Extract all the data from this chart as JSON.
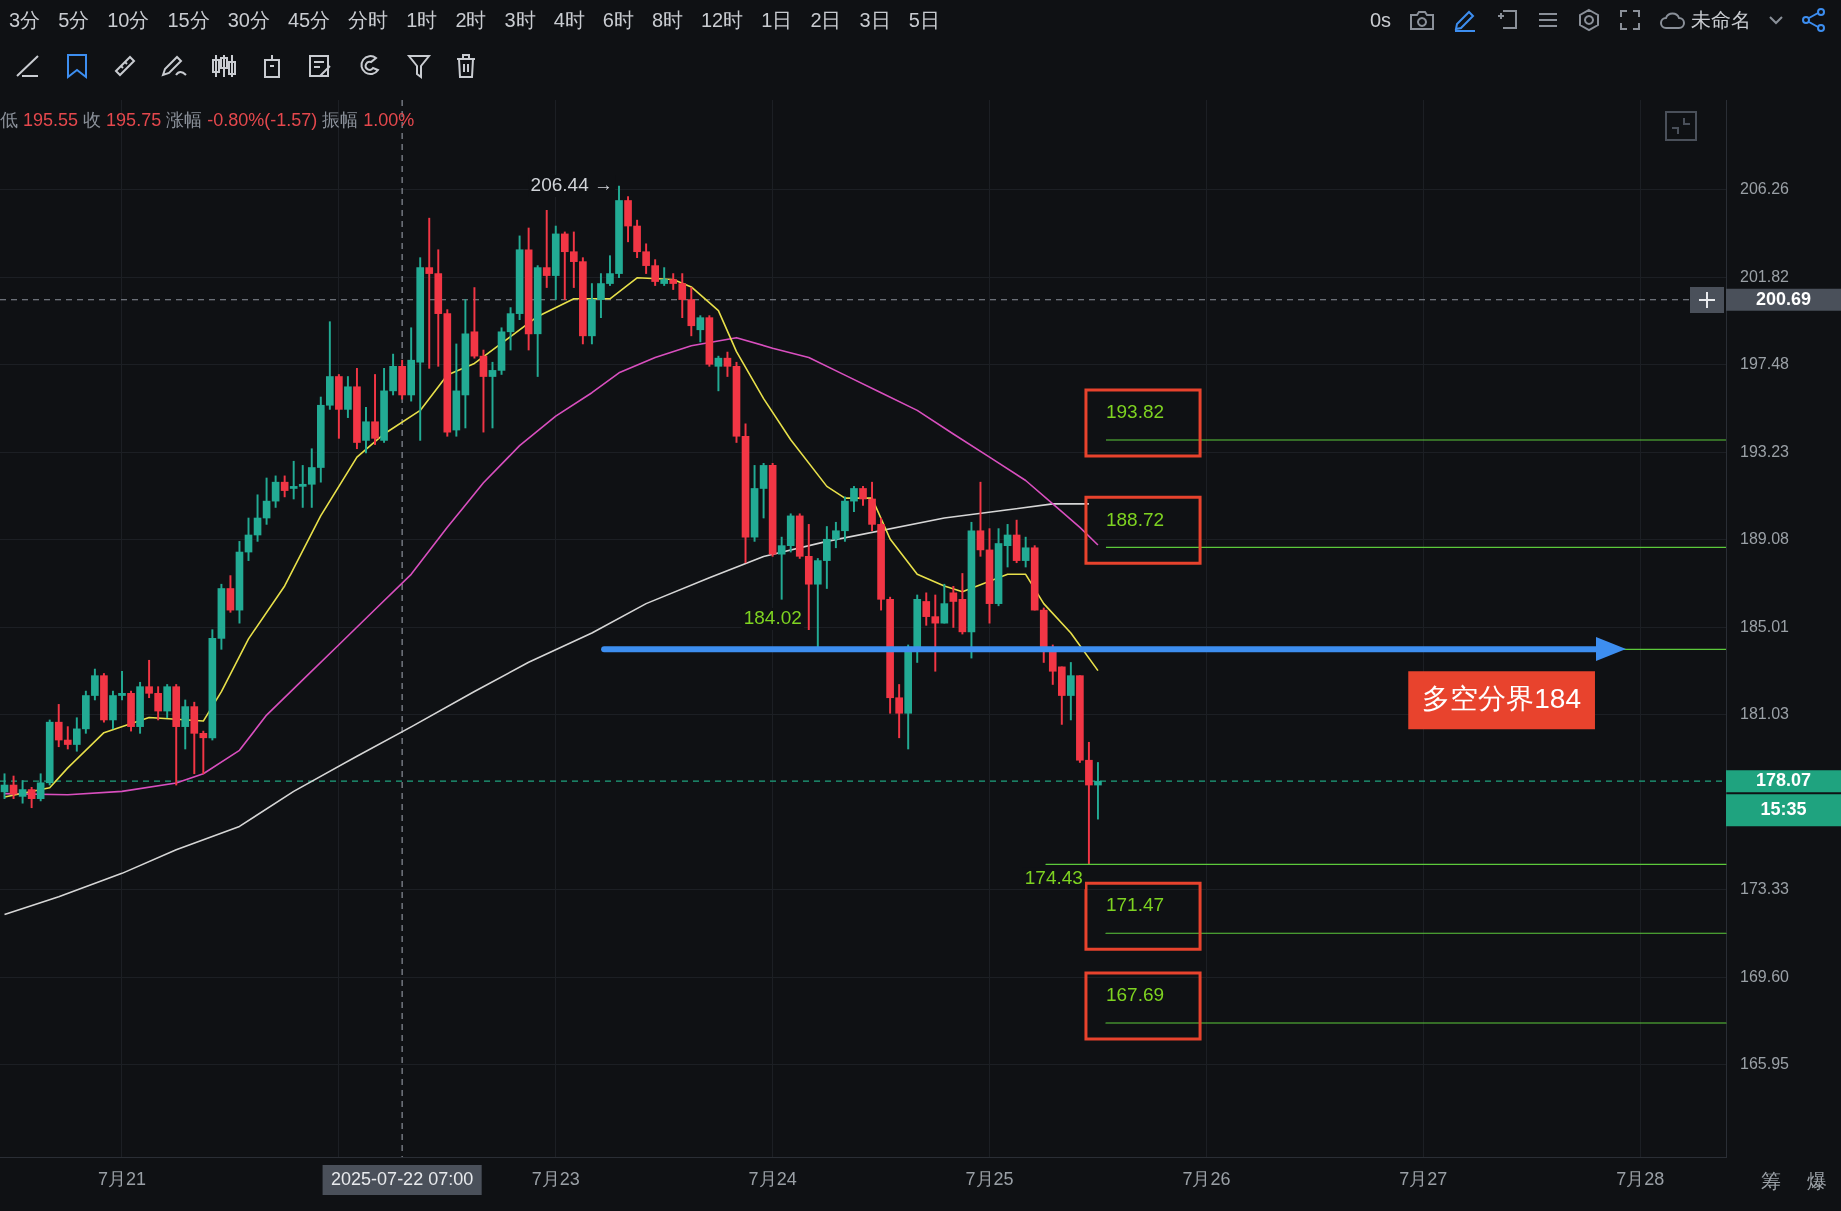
{
  "chart_data": {
    "type": "candlestick",
    "subtitle": "低 195.55 收 195.75 涨幅 -0.80%(-1.57) 振幅 1.00%",
    "x": [
      "2025-07-20T11:00",
      "2025-07-20T12:00",
      "2025-07-20T13:00",
      "2025-07-20T14:00",
      "2025-07-20T15:00",
      "2025-07-20T16:00",
      "2025-07-20T17:00",
      "2025-07-20T18:00",
      "2025-07-20T19:00",
      "2025-07-20T20:00",
      "2025-07-20T21:00",
      "2025-07-20T22:00",
      "2025-07-20T23:00",
      "2025-07-21T00:00",
      "2025-07-21T01:00",
      "2025-07-21T02:00",
      "2025-07-21T03:00",
      "2025-07-21T04:00",
      "2025-07-21T05:00",
      "2025-07-21T06:00",
      "2025-07-21T07:00",
      "2025-07-21T08:00",
      "2025-07-21T09:00",
      "2025-07-21T10:00",
      "2025-07-21T11:00",
      "2025-07-21T12:00",
      "2025-07-21T13:00",
      "2025-07-21T14:00",
      "2025-07-21T15:00",
      "2025-07-21T16:00",
      "2025-07-21T17:00",
      "2025-07-21T18:00",
      "2025-07-21T19:00",
      "2025-07-21T20:00",
      "2025-07-21T21:00",
      "2025-07-21T22:00",
      "2025-07-21T23:00",
      "2025-07-22T00:00",
      "2025-07-22T01:00",
      "2025-07-22T02:00",
      "2025-07-22T03:00",
      "2025-07-22T04:00",
      "2025-07-22T05:00",
      "2025-07-22T06:00",
      "2025-07-22T07:00",
      "2025-07-22T08:00",
      "2025-07-22T09:00",
      "2025-07-22T10:00",
      "2025-07-22T11:00",
      "2025-07-22T12:00",
      "2025-07-22T13:00",
      "2025-07-22T14:00",
      "2025-07-22T15:00",
      "2025-07-22T16:00",
      "2025-07-22T17:00",
      "2025-07-22T18:00",
      "2025-07-22T19:00",
      "2025-07-22T20:00",
      "2025-07-22T21:00",
      "2025-07-22T22:00",
      "2025-07-22T23:00",
      "2025-07-23T00:00",
      "2025-07-23T01:00",
      "2025-07-23T02:00",
      "2025-07-23T03:00",
      "2025-07-23T04:00",
      "2025-07-23T05:00",
      "2025-07-23T06:00",
      "2025-07-23T07:00",
      "2025-07-23T08:00",
      "2025-07-23T09:00",
      "2025-07-23T10:00",
      "2025-07-23T11:00",
      "2025-07-23T12:00",
      "2025-07-23T13:00",
      "2025-07-23T14:00",
      "2025-07-23T15:00",
      "2025-07-23T16:00",
      "2025-07-23T17:00",
      "2025-07-23T18:00",
      "2025-07-23T19:00",
      "2025-07-23T20:00",
      "2025-07-23T21:00",
      "2025-07-23T22:00",
      "2025-07-23T23:00",
      "2025-07-24T00:00",
      "2025-07-24T01:00",
      "2025-07-24T02:00",
      "2025-07-24T03:00",
      "2025-07-24T04:00",
      "2025-07-24T05:00",
      "2025-07-24T06:00",
      "2025-07-24T07:00",
      "2025-07-24T08:00",
      "2025-07-24T09:00",
      "2025-07-24T10:00",
      "2025-07-24T11:00",
      "2025-07-24T12:00",
      "2025-07-24T13:00",
      "2025-07-24T14:00",
      "2025-07-24T15:00",
      "2025-07-24T16:00",
      "2025-07-24T17:00",
      "2025-07-24T18:00",
      "2025-07-24T19:00",
      "2025-07-24T20:00",
      "2025-07-24T21:00",
      "2025-07-24T22:00",
      "2025-07-24T23:00",
      "2025-07-25T00:00",
      "2025-07-25T01:00",
      "2025-07-25T02:00",
      "2025-07-25T03:00",
      "2025-07-25T04:00",
      "2025-07-25T05:00",
      "2025-07-25T06:00",
      "2025-07-25T07:00",
      "2025-07-25T08:00",
      "2025-07-25T09:00",
      "2025-07-25T10:00",
      "2025-07-25T11:00",
      "2025-07-25T12:00"
    ],
    "ohlc": [
      [
        177.6,
        178.4,
        177.3,
        177.9
      ],
      [
        177.9,
        178.3,
        177.3,
        177.5
      ],
      [
        177.4,
        178.1,
        177.1,
        177.7
      ],
      [
        177.7,
        177.8,
        176.9,
        177.3
      ],
      [
        177.3,
        178.4,
        177.2,
        178.0
      ],
      [
        178.0,
        180.8,
        177.9,
        180.7
      ],
      [
        180.7,
        181.5,
        179.6,
        179.9
      ],
      [
        179.9,
        180.5,
        179.5,
        179.7
      ],
      [
        179.7,
        180.9,
        179.4,
        180.4
      ],
      [
        180.4,
        182.1,
        180.2,
        181.9
      ],
      [
        181.9,
        183.1,
        181.7,
        182.8
      ],
      [
        182.8,
        182.9,
        180.7,
        180.8
      ],
      [
        180.8,
        182.1,
        180.4,
        181.9
      ],
      [
        181.9,
        183.0,
        181.7,
        182.0
      ],
      [
        182.0,
        182.1,
        180.3,
        180.5
      ],
      [
        180.5,
        182.5,
        180.2,
        182.3
      ],
      [
        182.3,
        183.5,
        181.8,
        182.0
      ],
      [
        182.0,
        182.3,
        180.8,
        181.2
      ],
      [
        181.2,
        182.4,
        180.9,
        182.3
      ],
      [
        182.3,
        182.4,
        177.9,
        180.5
      ],
      [
        180.5,
        181.7,
        179.5,
        181.4
      ],
      [
        181.4,
        181.6,
        178.4,
        180.2
      ],
      [
        180.2,
        180.3,
        178.4,
        180.0
      ],
      [
        180.0,
        184.9,
        179.9,
        184.5
      ],
      [
        184.5,
        187.0,
        184.0,
        186.8
      ],
      [
        186.8,
        187.4,
        185.7,
        185.8
      ],
      [
        185.8,
        189.0,
        185.2,
        188.5
      ],
      [
        188.5,
        190.1,
        188.1,
        189.3
      ],
      [
        189.3,
        191.2,
        189.0,
        190.1
      ],
      [
        190.1,
        192.0,
        189.8,
        190.9
      ],
      [
        190.9,
        192.1,
        190.6,
        191.8
      ],
      [
        191.8,
        192.1,
        191.1,
        191.4
      ],
      [
        191.5,
        192.8,
        191.0,
        191.6
      ],
      [
        191.6,
        192.6,
        190.6,
        191.7
      ],
      [
        191.7,
        193.4,
        190.6,
        192.5
      ],
      [
        192.5,
        195.9,
        191.8,
        195.5
      ],
      [
        195.5,
        199.6,
        195.3,
        196.9
      ],
      [
        196.9,
        197.0,
        193.9,
        195.3
      ],
      [
        195.3,
        196.9,
        194.9,
        196.4
      ],
      [
        196.4,
        197.3,
        193.4,
        193.7
      ],
      [
        193.8,
        195.4,
        193.2,
        194.7
      ],
      [
        194.7,
        197.0,
        193.6,
        193.9
      ],
      [
        193.8,
        197.3,
        193.7,
        196.2
      ],
      [
        196.2,
        198.0,
        196.0,
        197.4
      ],
      [
        197.4,
        197.7,
        195.8,
        196.0
      ],
      [
        196.0,
        199.3,
        195.7,
        197.7
      ],
      [
        197.6,
        202.8,
        193.8,
        202.3
      ],
      [
        202.3,
        204.8,
        197.3,
        202.0
      ],
      [
        202.0,
        203.2,
        197.4,
        200.0
      ],
      [
        200.0,
        200.2,
        194.0,
        194.2
      ],
      [
        194.3,
        198.5,
        194.0,
        196.2
      ],
      [
        196.0,
        200.7,
        194.4,
        199.0
      ],
      [
        199.1,
        201.3,
        197.8,
        197.9
      ],
      [
        197.9,
        198.2,
        194.2,
        196.9
      ],
      [
        196.9,
        197.6,
        194.4,
        197.2
      ],
      [
        197.2,
        199.3,
        197.0,
        199.1
      ],
      [
        199.1,
        200.3,
        198.2,
        200.0
      ],
      [
        200.0,
        203.9,
        199.7,
        203.2
      ],
      [
        203.2,
        204.3,
        198.2,
        199.0
      ],
      [
        199.0,
        202.4,
        196.9,
        202.3
      ],
      [
        202.3,
        205.2,
        201.3,
        201.9
      ],
      [
        201.9,
        204.4,
        200.7,
        204.0
      ],
      [
        204.0,
        204.1,
        200.7,
        203.1
      ],
      [
        203.1,
        204.1,
        201.3,
        202.6
      ],
      [
        202.6,
        202.8,
        198.5,
        198.9
      ],
      [
        198.9,
        201.5,
        198.5,
        200.7
      ],
      [
        200.7,
        202.0,
        199.8,
        201.5
      ],
      [
        201.5,
        202.9,
        201.4,
        202.0
      ],
      [
        202.0,
        206.44,
        201.8,
        205.7
      ],
      [
        205.7,
        205.9,
        203.6,
        204.4
      ],
      [
        204.4,
        204.7,
        202.8,
        203.1
      ],
      [
        203.1,
        203.5,
        202.0,
        202.4
      ],
      [
        202.4,
        202.7,
        201.4,
        201.6
      ],
      [
        201.5,
        202.3,
        201.4,
        201.7
      ],
      [
        201.7,
        202.0,
        201.2,
        201.5
      ],
      [
        201.5,
        202.0,
        199.8,
        200.7
      ],
      [
        200.7,
        201.3,
        198.9,
        199.4
      ],
      [
        199.2,
        199.9,
        198.6,
        199.8
      ],
      [
        199.8,
        199.9,
        197.4,
        197.5
      ],
      [
        197.4,
        197.9,
        196.2,
        197.8
      ],
      [
        197.8,
        198.1,
        196.9,
        197.4
      ],
      [
        197.4,
        197.6,
        193.7,
        194.0
      ],
      [
        194.0,
        194.6,
        188.0,
        189.2
      ],
      [
        189.2,
        192.6,
        189.0,
        191.5
      ],
      [
        191.5,
        192.7,
        190.1,
        192.6
      ],
      [
        192.6,
        192.7,
        188.3,
        188.4
      ],
      [
        188.4,
        189.2,
        186.3,
        188.8
      ],
      [
        188.8,
        190.3,
        188.5,
        190.2
      ],
      [
        190.2,
        190.3,
        188.2,
        188.3
      ],
      [
        188.3,
        189.8,
        184.9,
        187.0
      ],
      [
        187.0,
        188.2,
        184.02,
        188.1
      ],
      [
        188.1,
        189.7,
        186.8,
        189.1
      ],
      [
        189.1,
        189.9,
        188.7,
        189.5
      ],
      [
        189.5,
        191.1,
        189.0,
        190.9
      ],
      [
        190.9,
        191.6,
        190.4,
        191.5
      ],
      [
        191.5,
        191.6,
        190.7,
        191.0
      ],
      [
        191.0,
        191.8,
        189.5,
        189.8
      ],
      [
        189.8,
        190.1,
        185.8,
        186.3
      ],
      [
        186.3,
        186.4,
        181.1,
        181.8
      ],
      [
        181.8,
        182.4,
        180.0,
        181.1
      ],
      [
        181.1,
        184.2,
        179.5,
        184.1
      ],
      [
        184.1,
        186.5,
        183.4,
        186.3
      ],
      [
        186.2,
        186.6,
        185.1,
        185.5
      ],
      [
        185.5,
        186.5,
        183.0,
        185.2
      ],
      [
        185.2,
        187.0,
        185.2,
        186.1
      ],
      [
        186.6,
        186.9,
        185.0,
        186.2
      ],
      [
        186.3,
        187.5,
        184.7,
        184.8
      ],
      [
        184.8,
        189.9,
        183.6,
        189.5
      ],
      [
        189.5,
        191.8,
        188.3,
        188.6
      ],
      [
        188.6,
        189.6,
        185.2,
        186.1
      ],
      [
        186.1,
        189.6,
        186.0,
        188.9
      ],
      [
        188.8,
        189.8,
        187.8,
        189.3
      ],
      [
        189.3,
        190.0,
        188.0,
        188.1
      ],
      [
        188.1,
        189.2,
        187.8,
        188.7
      ],
      [
        188.7,
        188.8,
        185.8,
        185.8
      ],
      [
        185.8,
        185.9,
        183.4,
        184.0
      ],
      [
        184.0,
        184.2,
        182.4,
        183.0
      ],
      [
        183.2,
        183.2,
        180.6,
        181.9
      ],
      [
        181.9,
        183.4,
        180.8,
        182.8
      ],
      [
        182.8,
        182.8,
        178.9,
        179.0
      ],
      [
        179.0,
        179.8,
        174.43,
        177.9
      ],
      [
        177.9,
        178.9,
        176.4,
        178.07
      ]
    ],
    "colors": [
      "#22ab94",
      "#f23645",
      "#22ab94",
      "#f23645",
      "#22ab94",
      "#22ab94",
      "#f23645",
      "#f23645",
      "#22ab94",
      "#22ab94",
      "#22ab94",
      "#f23645",
      "#22ab94",
      "#22ab94",
      "#f23645",
      "#22ab94",
      "#f23645",
      "#f23645",
      "#22ab94",
      "#f23645",
      "#22ab94",
      "#f23645",
      "#f23645",
      "#22ab94",
      "#22ab94",
      "#f23645",
      "#22ab94",
      "#22ab94",
      "#22ab94",
      "#22ab94",
      "#22ab94",
      "#f23645",
      "#22ab94",
      "#22ab94",
      "#22ab94",
      "#22ab94",
      "#22ab94",
      "#f23645",
      "#22ab94",
      "#f23645",
      "#22ab94",
      "#f23645",
      "#22ab94",
      "#22ab94",
      "#f23645",
      "#22ab94",
      "#22ab94",
      "#f23645",
      "#f23645",
      "#f23645",
      "#22ab94",
      "#22ab94",
      "#f23645",
      "#f23645",
      "#22ab94",
      "#22ab94",
      "#22ab94",
      "#22ab94",
      "#f23645",
      "#22ab94",
      "#f23645",
      "#22ab94",
      "#f23645",
      "#f23645",
      "#f23645",
      "#22ab94",
      "#22ab94",
      "#22ab94",
      "#22ab94",
      "#f23645",
      "#f23645",
      "#f23645",
      "#f23645",
      "#22ab94",
      "#f23645",
      "#f23645",
      "#f23645",
      "#22ab94",
      "#f23645",
      "#22ab94",
      "#f23645",
      "#f23645",
      "#f23645",
      "#22ab94",
      "#22ab94",
      "#f23645",
      "#22ab94",
      "#22ab94",
      "#f23645",
      "#f23645",
      "#22ab94",
      "#22ab94",
      "#22ab94",
      "#22ab94",
      "#22ab94",
      "#f23645",
      "#f23645",
      "#f23645",
      "#f23645",
      "#f23645",
      "#22ab94",
      "#22ab94",
      "#f23645",
      "#f23645",
      "#22ab94",
      "#f23645",
      "#f23645",
      "#22ab94",
      "#f23645",
      "#f23645",
      "#22ab94",
      "#22ab94",
      "#f23645",
      "#22ab94",
      "#f23645",
      "#f23645",
      "#f23645",
      "#f23645",
      "#22ab94",
      "#f23645",
      "#f23645",
      "#22ab94"
    ],
    "series": [
      {
        "type": "line",
        "color": "#e8e04a",
        "x": [
          "2025-07-20T11:00",
          "2025-07-20T16:00",
          "2025-07-20T18:00",
          "2025-07-20T22:00",
          "2025-07-21T03:00",
          "2025-07-21T09:00",
          "2025-07-21T11:00",
          "2025-07-21T14:00",
          "2025-07-21T18:00",
          "2025-07-21T22:00",
          "2025-07-22T02:00",
          "2025-07-22T05:00",
          "2025-07-22T09:00",
          "2025-07-22T12:00",
          "2025-07-22T15:00",
          "2025-07-22T22:00",
          "2025-07-23T02:00",
          "2025-07-23T06:00",
          "2025-07-23T09:00",
          "2025-07-23T13:00",
          "2025-07-23T15:00",
          "2025-07-23T18:00",
          "2025-07-23T20:00",
          "2025-07-23T23:00",
          "2025-07-24T02:00",
          "2025-07-24T06:00",
          "2025-07-24T08:00",
          "2025-07-24T11:00",
          "2025-07-24T13:00",
          "2025-07-24T16:00",
          "2025-07-24T19:00",
          "2025-07-24T21:00",
          "2025-07-25T02:00",
          "2025-07-25T04:00",
          "2025-07-25T06:00",
          "2025-07-25T09:00",
          "2025-07-25T12:00"
        ],
        "values": [
          177.37,
          177.78,
          178.66,
          180.23,
          180.91,
          180.75,
          182.08,
          184.48,
          186.92,
          190.21,
          193.0,
          194.11,
          195.25,
          196.97,
          197.54,
          199.86,
          200.74,
          200.74,
          201.79,
          201.7,
          201.33,
          200.15,
          198.12,
          195.82,
          193.83,
          191.6,
          191.04,
          191.04,
          189.11,
          187.46,
          186.92,
          186.65,
          187.46,
          187.46,
          186.1,
          184.75,
          183.03
        ]
      },
      {
        "type": "line",
        "color": "#d94fbf",
        "x": [
          "2025-07-20T11:00",
          "2025-07-20T18:00",
          "2025-07-21T00:00",
          "2025-07-21T06:00",
          "2025-07-21T09:00",
          "2025-07-21T13:00",
          "2025-07-21T16:00",
          "2025-07-21T20:00",
          "2025-07-22T00:00",
          "2025-07-22T04:00",
          "2025-07-22T08:00",
          "2025-07-22T12:00",
          "2025-07-22T16:00",
          "2025-07-22T20:00",
          "2025-07-23T00:00",
          "2025-07-23T04:00",
          "2025-07-23T07:00",
          "2025-07-23T11:00",
          "2025-07-23T15:00",
          "2025-07-23T20:00",
          "2025-07-24T00:00",
          "2025-07-24T04:00",
          "2025-07-24T08:00",
          "2025-07-24T12:00",
          "2025-07-24T16:00",
          "2025-07-24T20:00",
          "2025-07-25T00:00",
          "2025-07-25T04:00",
          "2025-07-25T07:00",
          "2025-07-25T10:00",
          "2025-07-25T12:00"
        ],
        "values": [
          177.52,
          177.47,
          177.62,
          177.99,
          178.4,
          179.44,
          181.02,
          182.61,
          184.21,
          185.83,
          187.46,
          189.66,
          191.77,
          193.55,
          194.97,
          196.11,
          197.08,
          197.83,
          198.41,
          198.81,
          198.29,
          197.83,
          196.97,
          196.11,
          195.25,
          194.11,
          193.0,
          191.88,
          190.77,
          189.66,
          188.83
        ]
      },
      {
        "type": "line",
        "color": "#d6d6d6",
        "x": [
          "2025-07-20T11:00",
          "2025-07-20T17:00",
          "2025-07-21T00:00",
          "2025-07-21T06:00",
          "2025-07-21T13:00",
          "2025-07-21T19:00",
          "2025-07-22T02:00",
          "2025-07-22T08:00",
          "2025-07-22T15:00",
          "2025-07-22T21:00",
          "2025-07-23T04:00",
          "2025-07-23T10:00",
          "2025-07-23T17:00",
          "2025-07-23T23:00",
          "2025-07-24T06:00",
          "2025-07-24T19:00",
          "2025-07-25T01:00",
          "2025-07-25T07:00",
          "2025-07-25T11:00"
        ],
        "values": [
          172.27,
          173.03,
          174.04,
          175.06,
          176.08,
          177.62,
          179.18,
          180.49,
          182.08,
          183.41,
          184.75,
          186.1,
          187.3,
          188.29,
          189.0,
          190.1,
          190.43,
          190.77,
          190.77
        ]
      }
    ],
    "xlim": [
      "2025-07-20T10:30",
      "2025-07-28T09:30"
    ],
    "xticks": [
      {
        "value": "2025-07-21",
        "label": "7月21"
      },
      {
        "value": "2025-07-22",
        "label": null
      },
      {
        "value": "2025-07-23",
        "label": "7月23"
      },
      {
        "value": "2025-07-24",
        "label": "7月24"
      },
      {
        "value": "2025-07-25",
        "label": "7月25"
      },
      {
        "value": "2025-07-26",
        "label": "7月26"
      },
      {
        "value": "2025-07-27",
        "label": "7月27"
      },
      {
        "value": "2025-07-28",
        "label": "7月28"
      }
    ],
    "ylim": [
      162.2,
      210.9
    ],
    "yticks": [
      165.95,
      {
        "value": 169.6,
        "label": "169.60"
      },
      173.33,
      181.03,
      185.01,
      189.08,
      193.23,
      197.48,
      201.82,
      206.26
    ],
    "log": true,
    "grid": true,
    "ref_lines": [
      {
        "axis": "y",
        "value": 193.82,
        "label": "193.82"
      },
      {
        "axis": "y",
        "value": 188.72,
        "label": "188.72"
      },
      {
        "axis": "y",
        "value": 184,
        "label": "多空分界184",
        "color": "#3d8ef0"
      },
      {
        "axis": "y",
        "value": 174.43
      },
      {
        "axis": "y",
        "value": 171.47,
        "label": "171.47"
      },
      {
        "axis": "y",
        "value": 167.69,
        "label": "167.69"
      },
      {
        "axis": "y",
        "value": 200.69,
        "label": "200.69",
        "color": "#8a9099",
        "line_style": "dashed"
      },
      {
        "axis": "y",
        "value": 178.07,
        "label": "178.07",
        "color": "#1fa37f",
        "line_style": "dashed"
      },
      {
        "axis": "x",
        "value": "2025-07-22T07:00",
        "label": "2025-07-22 07:00",
        "color": "#8a9099",
        "line_style": "dashed"
      }
    ],
    "annotations": [
      "3分",
      "5分",
      "10分",
      "15分",
      "30分",
      "45分",
      "分时",
      "1时",
      "2时",
      "3时",
      "4时",
      "6时",
      "8时",
      "12时",
      "1日",
      "2日",
      "3日",
      "5日",
      "0s",
      "未命名",
      "筹",
      "爆",
      {
        "text": "206.44 →",
        "x": "2025-07-23T07:00",
        "y": 206.44
      },
      {
        "text": "184.02",
        "x": "2025-07-24T05:00",
        "y": 184.02
      },
      {
        "text": "174.43",
        "x": "2025-07-25T11:00",
        "y": 174.43
      },
      "15:35"
    ]
  }
}
